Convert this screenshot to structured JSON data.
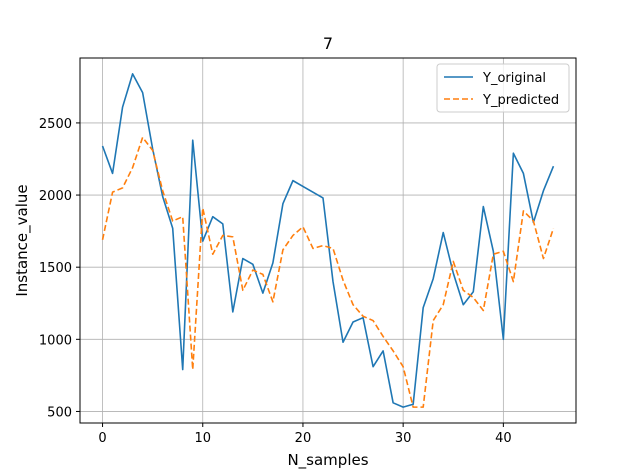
{
  "chart_data": {
    "type": "line",
    "title": "7",
    "xlabel": "N_samples",
    "ylabel": "Instance_value",
    "xlim": [
      -2.25,
      47.25
    ],
    "ylim": [
      420,
      2950
    ],
    "xticks": [
      0,
      10,
      20,
      30,
      40
    ],
    "yticks": [
      500,
      1000,
      1500,
      2000,
      2500
    ],
    "grid": true,
    "legend_position": "top-right",
    "x": [
      0,
      1,
      2,
      3,
      4,
      5,
      6,
      7,
      8,
      9,
      10,
      11,
      12,
      13,
      14,
      15,
      16,
      17,
      18,
      19,
      20,
      21,
      22,
      23,
      24,
      25,
      26,
      27,
      28,
      29,
      30,
      31,
      32,
      33,
      34,
      35,
      36,
      37,
      38,
      39,
      40,
      41,
      42,
      43,
      44,
      45
    ],
    "series": [
      {
        "name": "Y_original",
        "color": "#1f77b4",
        "style": "solid",
        "values": [
          2340,
          2150,
          2610,
          2840,
          2710,
          2320,
          1990,
          1770,
          790,
          2380,
          1680,
          1850,
          1800,
          1190,
          1560,
          1520,
          1320,
          1530,
          1940,
          2100,
          2060,
          2020,
          1980,
          1400,
          980,
          1120,
          1150,
          810,
          920,
          560,
          530,
          550,
          1220,
          1420,
          1740,
          1460,
          1240,
          1330,
          1920,
          1610,
          1000,
          2290,
          2150,
          1810,
          2030,
          2200
        ]
      },
      {
        "name": "Y_predicted",
        "color": "#ff7f0e",
        "style": "dashed",
        "values": [
          1690,
          2020,
          2050,
          2190,
          2400,
          2310,
          2030,
          1820,
          1850,
          790,
          1910,
          1590,
          1720,
          1710,
          1340,
          1480,
          1450,
          1260,
          1620,
          1720,
          1780,
          1630,
          1650,
          1630,
          1410,
          1240,
          1160,
          1130,
          1020,
          920,
          810,
          530,
          530,
          1130,
          1240,
          1540,
          1340,
          1290,
          1200,
          1590,
          1610,
          1400,
          1890,
          1820,
          1560,
          1770
        ]
      }
    ]
  }
}
